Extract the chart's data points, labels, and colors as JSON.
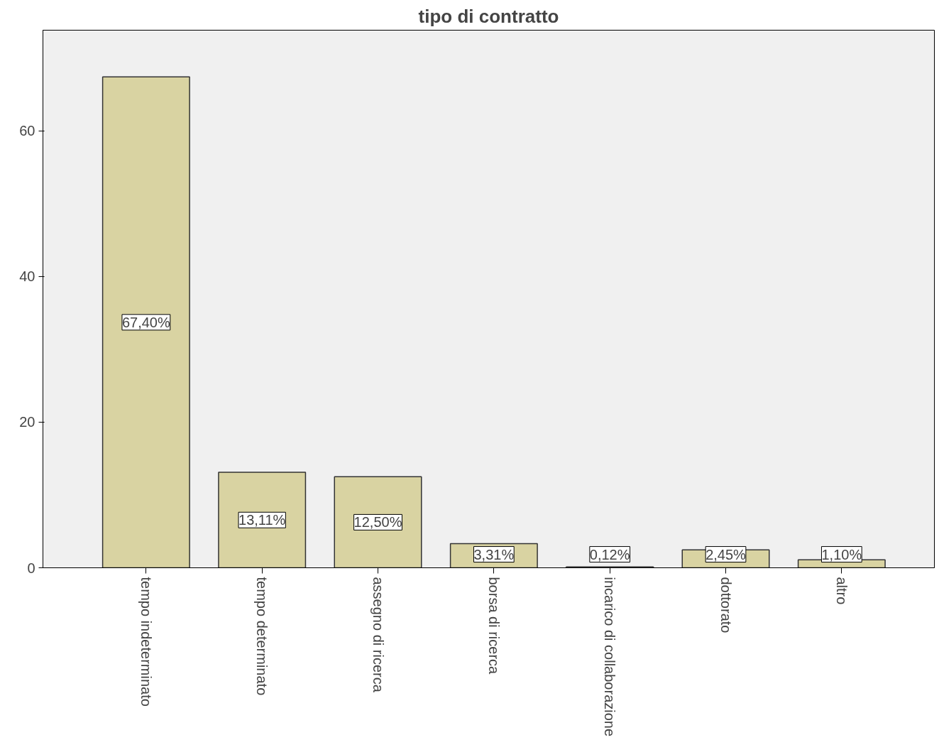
{
  "chart_data": {
    "type": "bar",
    "title": "tipo di contratto",
    "categories": [
      "tempo indeterminato",
      "tempo determinato",
      "assegno di ricerca",
      "borsa di ricerca",
      "incarico di collaborazione",
      "dottorato",
      "altro"
    ],
    "values": [
      67.4,
      13.11,
      12.5,
      3.31,
      0.12,
      2.45,
      1.1
    ],
    "value_labels": [
      "67,40%",
      "13,11%",
      "12,50%",
      "3,31%",
      "0,12%",
      "2,45%",
      "1,10%"
    ],
    "color": "#d9d3a2",
    "ylim": [
      0,
      73.8
    ],
    "yticks": [
      0,
      20,
      40,
      60
    ],
    "grid": false
  }
}
